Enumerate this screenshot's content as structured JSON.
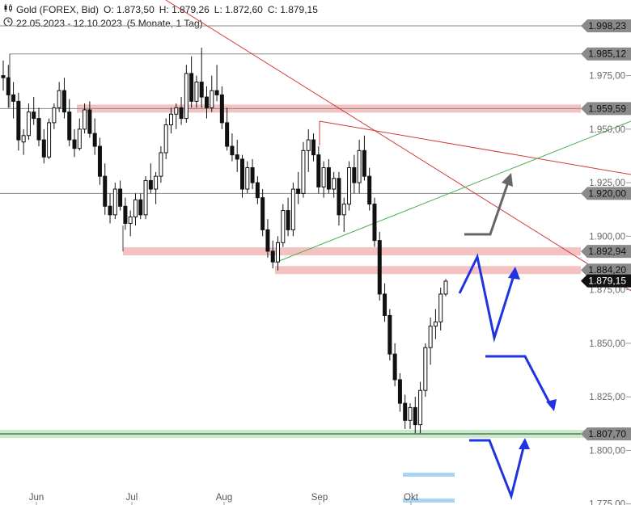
{
  "header": {
    "instrument": "Gold (FOREX, Bid)",
    "open": "O: 1.873,50",
    "high": "H: 1.879,26",
    "low": "L: 1.872,60",
    "close": "C: 1.879,15",
    "range": "22.05.2023 - 12.10.2023",
    "interval": "(5 Monate, 1 Tag)"
  },
  "chart_data": {
    "type": "candlestick",
    "y_range": [
      1770,
      2002
    ],
    "y_ticks": [
      {
        "value": 1975,
        "label": "1.975,00"
      },
      {
        "value": 1950,
        "label": "1.950,00"
      },
      {
        "value": 1925,
        "label": "1.925,00"
      },
      {
        "value": 1900,
        "label": "1.900,00"
      },
      {
        "value": 1875,
        "label": "1.875,00"
      },
      {
        "value": 1850,
        "label": "1.850,00"
      },
      {
        "value": 1825,
        "label": "1.825,00"
      },
      {
        "value": 1800,
        "label": "1.800,00"
      },
      {
        "value": 1775,
        "label": "1.775,00"
      }
    ],
    "x_ticks": [
      {
        "date": "2023-06-01",
        "label": "Jun"
      },
      {
        "date": "2023-07-03",
        "label": "Jul"
      },
      {
        "date": "2023-08-01",
        "label": "Aug"
      },
      {
        "date": "2023-09-01",
        "label": "Sep"
      },
      {
        "date": "2023-10-02",
        "label": "Okt"
      }
    ],
    "level_tags": [
      {
        "value": 1998.23,
        "label": "1.998,23",
        "style": "gray"
      },
      {
        "value": 1985.12,
        "label": "1.985,12",
        "style": "gray"
      },
      {
        "value": 1959.59,
        "label": "1.959,59",
        "style": "gray"
      },
      {
        "value": 1920.0,
        "label": "1.920,00",
        "style": "gray"
      },
      {
        "value": 1892.94,
        "label": "1.892,94",
        "style": "gray"
      },
      {
        "value": 1884.2,
        "label": "1.884,20",
        "style": "gray"
      },
      {
        "value": 1879.15,
        "label": "1.879,15",
        "style": "black"
      },
      {
        "value": 1807.7,
        "label": "1.807,70",
        "style": "gray"
      }
    ],
    "zones": [
      {
        "value": 1959.59,
        "color": "#f4c2c2"
      },
      {
        "value": 1892.94,
        "color": "#f4c2c2"
      },
      {
        "value": 1884.2,
        "color": "#f4c2c2"
      },
      {
        "value": 1807.7,
        "color": "#c8ecc8"
      }
    ],
    "candles": [
      [
        1975,
        1982,
        1968,
        1974
      ],
      [
        1974,
        1980,
        1960,
        1966
      ],
      [
        1966,
        1972,
        1955,
        1963
      ],
      [
        1963,
        1967,
        1940,
        1945
      ],
      [
        1944,
        1950,
        1938,
        1947
      ],
      [
        1947,
        1962,
        1945,
        1958
      ],
      [
        1958,
        1965,
        1952,
        1955
      ],
      [
        1955,
        1960,
        1942,
        1945
      ],
      [
        1945,
        1950,
        1934,
        1937
      ],
      [
        1937,
        1955,
        1936,
        1953
      ],
      [
        1953,
        1962,
        1950,
        1960
      ],
      [
        1960,
        1972,
        1958,
        1968
      ],
      [
        1968,
        1974,
        1955,
        1958
      ],
      [
        1958,
        1964,
        1942,
        1945
      ],
      [
        1945,
        1950,
        1937,
        1941
      ],
      [
        1941,
        1955,
        1940,
        1950
      ],
      [
        1950,
        1962,
        1948,
        1959
      ],
      [
        1959,
        1963,
        1946,
        1948
      ],
      [
        1948,
        1955,
        1938,
        1942
      ],
      [
        1942,
        1946,
        1924,
        1928
      ],
      [
        1928,
        1934,
        1910,
        1914
      ],
      [
        1914,
        1920,
        1906,
        1910
      ],
      [
        1910,
        1925,
        1908,
        1922
      ],
      [
        1922,
        1926,
        1912,
        1914
      ],
      [
        1914,
        1918,
        1903,
        1906
      ],
      [
        1906,
        1912,
        1900,
        1909
      ],
      [
        1909,
        1920,
        1905,
        1917
      ],
      [
        1917,
        1920,
        1908,
        1910
      ],
      [
        1910,
        1928,
        1908,
        1926
      ],
      [
        1926,
        1934,
        1920,
        1922
      ],
      [
        1922,
        1930,
        1915,
        1928
      ],
      [
        1928,
        1942,
        1925,
        1939
      ],
      [
        1939,
        1955,
        1936,
        1952
      ],
      [
        1952,
        1960,
        1948,
        1957
      ],
      [
        1957,
        1962,
        1950,
        1960
      ],
      [
        1960,
        1965,
        1952,
        1955
      ],
      [
        1955,
        1980,
        1953,
        1976
      ],
      [
        1976,
        1984,
        1960,
        1963
      ],
      [
        1963,
        1975,
        1960,
        1972
      ],
      [
        1972,
        1988,
        1960,
        1965
      ],
      [
        1965,
        1970,
        1955,
        1960
      ],
      [
        1960,
        1975,
        1958,
        1968
      ],
      [
        1968,
        1980,
        1963,
        1966
      ],
      [
        1966,
        1970,
        1950,
        1953
      ],
      [
        1953,
        1960,
        1940,
        1942
      ],
      [
        1942,
        1948,
        1935,
        1938
      ],
      [
        1938,
        1945,
        1930,
        1936
      ],
      [
        1936,
        1938,
        1918,
        1922
      ],
      [
        1922,
        1935,
        1920,
        1932
      ],
      [
        1932,
        1936,
        1922,
        1925
      ],
      [
        1925,
        1928,
        1915,
        1918
      ],
      [
        1918,
        1922,
        1900,
        1903
      ],
      [
        1903,
        1908,
        1890,
        1893
      ],
      [
        1893,
        1898,
        1885,
        1888
      ],
      [
        1888,
        1900,
        1884,
        1897
      ],
      [
        1897,
        1915,
        1895,
        1912
      ],
      [
        1912,
        1918,
        1900,
        1903
      ],
      [
        1903,
        1925,
        1900,
        1922
      ],
      [
        1922,
        1930,
        1915,
        1920
      ],
      [
        1920,
        1944,
        1918,
        1940
      ],
      [
        1940,
        1950,
        1930,
        1945
      ],
      [
        1945,
        1948,
        1935,
        1938
      ],
      [
        1938,
        1942,
        1920,
        1923
      ],
      [
        1923,
        1935,
        1918,
        1932
      ],
      [
        1932,
        1936,
        1920,
        1922
      ],
      [
        1922,
        1930,
        1918,
        1927
      ],
      [
        1927,
        1930,
        1905,
        1910
      ],
      [
        1910,
        1918,
        1902,
        1915
      ],
      [
        1915,
        1935,
        1912,
        1932
      ],
      [
        1932,
        1938,
        1920,
        1925
      ],
      [
        1925,
        1945,
        1920,
        1940
      ],
      [
        1940,
        1947,
        1926,
        1928
      ],
      [
        1928,
        1932,
        1912,
        1915
      ],
      [
        1915,
        1918,
        1895,
        1898
      ],
      [
        1898,
        1902,
        1870,
        1873
      ],
      [
        1873,
        1878,
        1860,
        1863
      ],
      [
        1863,
        1866,
        1842,
        1845
      ],
      [
        1845,
        1850,
        1830,
        1833
      ],
      [
        1833,
        1836,
        1818,
        1822
      ],
      [
        1822,
        1826,
        1810,
        1814
      ],
      [
        1814,
        1822,
        1810,
        1820
      ],
      [
        1820,
        1825,
        1808,
        1812
      ],
      [
        1812,
        1832,
        1808,
        1828
      ],
      [
        1828,
        1850,
        1825,
        1848
      ],
      [
        1848,
        1862,
        1840,
        1858
      ],
      [
        1858,
        1866,
        1852,
        1860
      ],
      [
        1860,
        1876,
        1856,
        1873
      ],
      [
        1873,
        1880,
        1872,
        1879
      ]
    ]
  }
}
